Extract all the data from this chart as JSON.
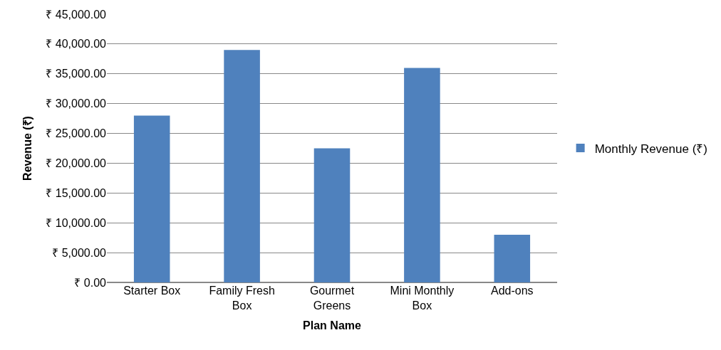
{
  "chart_data": {
    "type": "bar",
    "xlabel": "Plan Name",
    "ylabel": "Revenue (₹)",
    "categories": [
      "Starter Box",
      "Family Fresh Box",
      "Gourmet Greens",
      "Mini Monthly Box",
      "Add-ons"
    ],
    "series": [
      {
        "name": "Monthly Revenue (₹)",
        "color": "#4f81bd",
        "values": [
          28000,
          39000,
          22500,
          36000,
          8000
        ]
      }
    ],
    "ylim": [
      0,
      45000
    ],
    "yticks": [
      {
        "value": 0,
        "label": "₹ 0.00"
      },
      {
        "value": 5000,
        "label": "₹ 5,000.00"
      },
      {
        "value": 10000,
        "label": "₹ 10,000.00"
      },
      {
        "value": 15000,
        "label": "₹ 15,000.00"
      },
      {
        "value": 20000,
        "label": "₹ 20,000.00"
      },
      {
        "value": 25000,
        "label": "₹ 25,000.00"
      },
      {
        "value": 30000,
        "label": "₹ 30,000.00"
      },
      {
        "value": 35000,
        "label": "₹ 35,000.00"
      },
      {
        "value": 40000,
        "label": "₹ 40,000.00"
      },
      {
        "value": 45000,
        "label": "₹ 45,000.00"
      }
    ],
    "grid": "y",
    "legend": "right"
  }
}
